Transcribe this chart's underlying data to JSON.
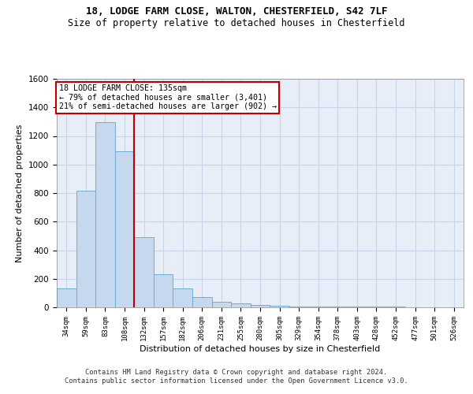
{
  "title1": "18, LODGE FARM CLOSE, WALTON, CHESTERFIELD, S42 7LF",
  "title2": "Size of property relative to detached houses in Chesterfield",
  "xlabel": "Distribution of detached houses by size in Chesterfield",
  "ylabel": "Number of detached properties",
  "categories": [
    "34sqm",
    "59sqm",
    "83sqm",
    "108sqm",
    "132sqm",
    "157sqm",
    "182sqm",
    "206sqm",
    "231sqm",
    "255sqm",
    "280sqm",
    "305sqm",
    "329sqm",
    "354sqm",
    "378sqm",
    "403sqm",
    "428sqm",
    "452sqm",
    "477sqm",
    "501sqm",
    "526sqm"
  ],
  "values": [
    135,
    815,
    1295,
    1090,
    490,
    230,
    135,
    70,
    40,
    30,
    18,
    12,
    8,
    6,
    5,
    4,
    3,
    3,
    2,
    2,
    2
  ],
  "bar_color": "#c5d8ee",
  "bar_edge_color": "#6baed6",
  "vline_color": "#c00000",
  "ylim": [
    0,
    1600
  ],
  "annotation_text": "18 LODGE FARM CLOSE: 135sqm\n← 79% of detached houses are smaller (3,401)\n21% of semi-detached houses are larger (902) →",
  "annotation_box_color": "#ffffff",
  "annotation_box_edge": "#c00000",
  "footer1": "Contains HM Land Registry data © Crown copyright and database right 2024.",
  "footer2": "Contains public sector information licensed under the Open Government Licence v3.0.",
  "grid_color": "#c8d4e8",
  "background_color": "#e8eef8"
}
